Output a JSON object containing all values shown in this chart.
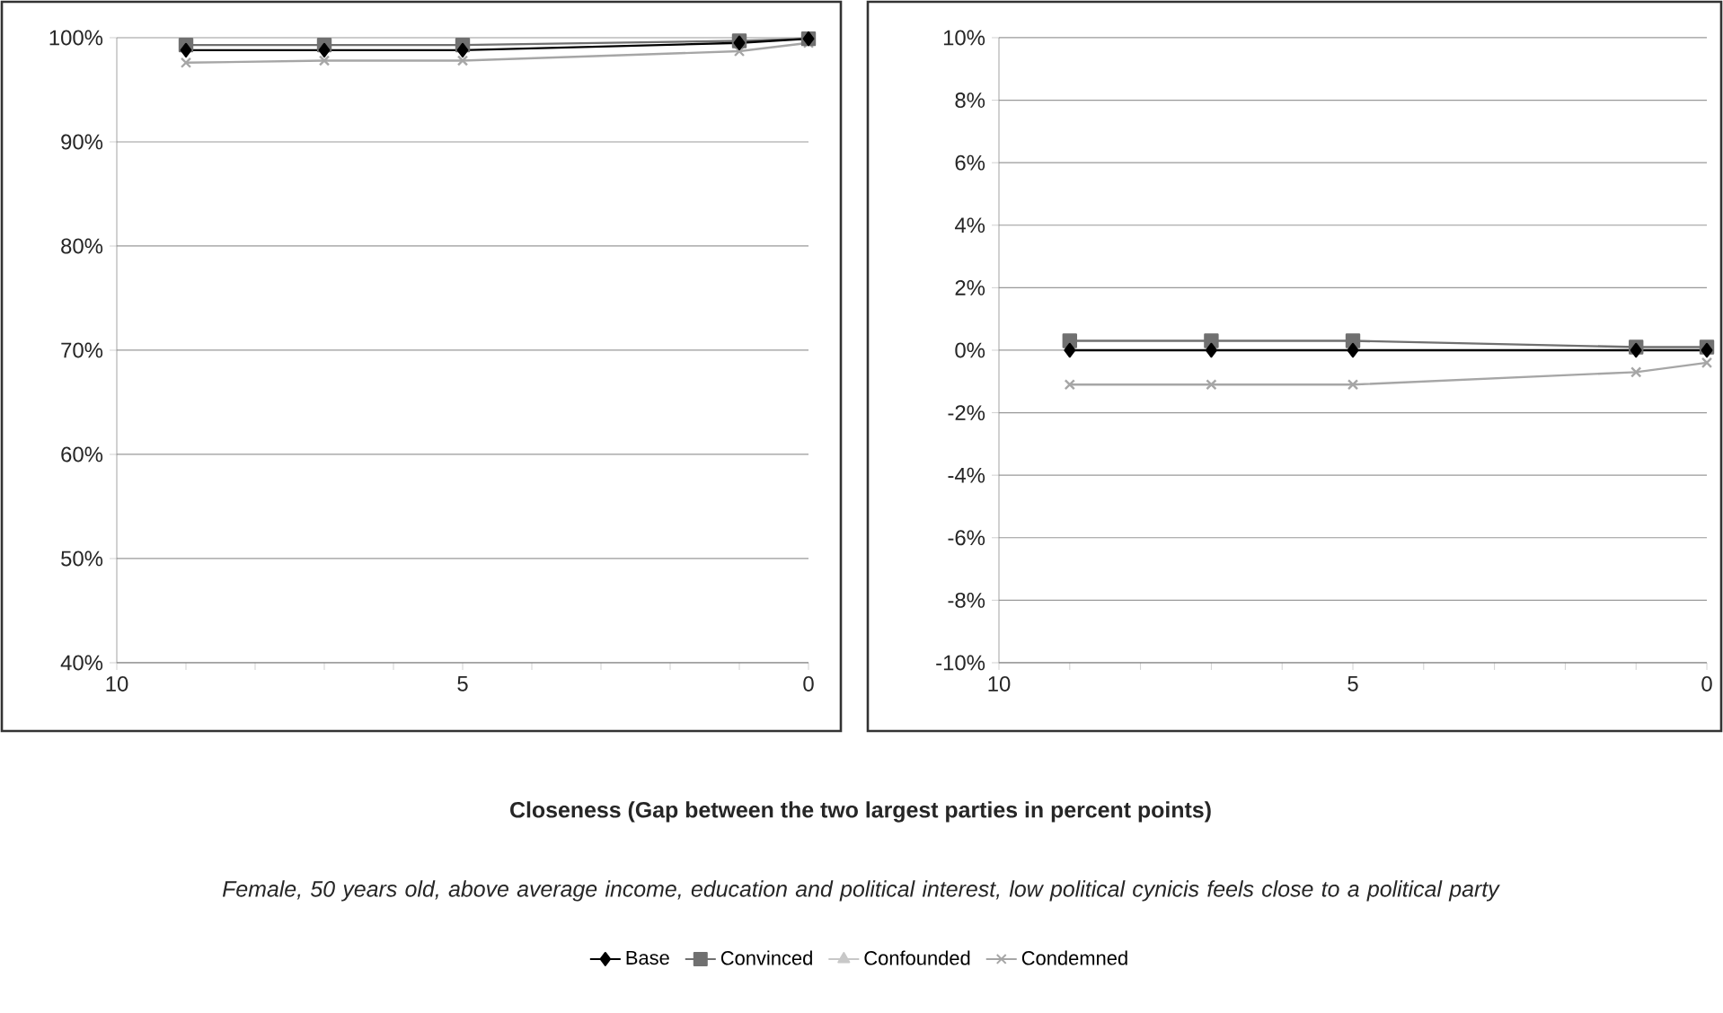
{
  "chart_data": [
    {
      "type": "line",
      "xlabel": "Closeness (Gap between the two largest parties in percent points)",
      "subtitle": "Female, 50 years old, above average income, education and political interest, low political cynicis feels close to a political party",
      "x": [
        9,
        7,
        5,
        1,
        0
      ],
      "xlim": [
        10,
        0
      ],
      "xticks": [
        10,
        {
          "value": 9,
          "label": null
        },
        {
          "value": 8,
          "label": null
        },
        {
          "value": 7,
          "label": null
        },
        {
          "value": 6,
          "label": null
        },
        5,
        {
          "value": 4,
          "label": null
        },
        {
          "value": 3,
          "label": null
        },
        {
          "value": 2,
          "label": null
        },
        {
          "value": 1,
          "label": null
        },
        0
      ],
      "ylim": [
        40,
        100
      ],
      "yticks": [
        {
          "value": 40,
          "label": "40%"
        },
        {
          "value": 50,
          "label": "50%"
        },
        {
          "value": 60,
          "label": "60%"
        },
        {
          "value": 70,
          "label": "70%"
        },
        {
          "value": 80,
          "label": "80%"
        },
        {
          "value": 90,
          "label": "90%"
        },
        {
          "value": 100,
          "label": "100%"
        }
      ],
      "grid": "y",
      "legend": "bottom",
      "line_style": "solid",
      "series": [
        {
          "name": "Base",
          "color": "#000000",
          "marker": "diamond",
          "values": [
            98.8,
            98.8,
            98.8,
            99.5,
            99.9
          ]
        },
        {
          "name": "Convinced",
          "color": "#707070",
          "marker": "square",
          "values": [
            99.3,
            99.3,
            99.3,
            99.7,
            99.9
          ]
        },
        {
          "name": "Confounded",
          "color": "#c8c8c8",
          "marker": "triangle",
          "values": [
            null,
            null,
            null,
            null,
            null
          ]
        },
        {
          "name": "Condemned",
          "color": "#a6a6a6",
          "marker": "cross",
          "values": [
            97.6,
            97.8,
            97.8,
            98.7,
            99.5
          ]
        }
      ]
    },
    {
      "type": "line",
      "x": [
        9,
        7,
        5,
        1,
        0
      ],
      "xlim": [
        10,
        0
      ],
      "xticks": [
        10,
        {
          "value": 9,
          "label": null
        },
        {
          "value": 8,
          "label": null
        },
        {
          "value": 7,
          "label": null
        },
        {
          "value": 6,
          "label": null
        },
        5,
        {
          "value": 4,
          "label": null
        },
        {
          "value": 3,
          "label": null
        },
        {
          "value": 2,
          "label": null
        },
        {
          "value": 1,
          "label": null
        },
        0
      ],
      "ylim": [
        -10,
        10
      ],
      "yticks": [
        {
          "value": -10,
          "label": "-10%"
        },
        {
          "value": -8,
          "label": "-8%"
        },
        {
          "value": -6,
          "label": "-6%"
        },
        {
          "value": -4,
          "label": "-4%"
        },
        {
          "value": -2,
          "label": "-2%"
        },
        {
          "value": 0,
          "label": "0%"
        },
        {
          "value": 2,
          "label": "2%"
        },
        {
          "value": 4,
          "label": "4%"
        },
        {
          "value": 6,
          "label": "6%"
        },
        {
          "value": 8,
          "label": "8%"
        },
        {
          "value": 10,
          "label": "10%"
        }
      ],
      "grid": "y",
      "line_style": "solid",
      "series": [
        {
          "color": "#000000",
          "marker": "diamond",
          "values": [
            0,
            0,
            0,
            0,
            0
          ]
        },
        {
          "color": "#707070",
          "marker": "square",
          "values": [
            0.3,
            0.3,
            0.3,
            0.1,
            0.1
          ]
        },
        {
          "color": "#c8c8c8",
          "marker": "triangle",
          "values": [
            null,
            null,
            null,
            null,
            null
          ]
        },
        {
          "color": "#a6a6a6",
          "marker": "cross",
          "values": [
            -1.1,
            -1.1,
            -1.1,
            -0.7,
            -0.4
          ]
        }
      ]
    }
  ]
}
